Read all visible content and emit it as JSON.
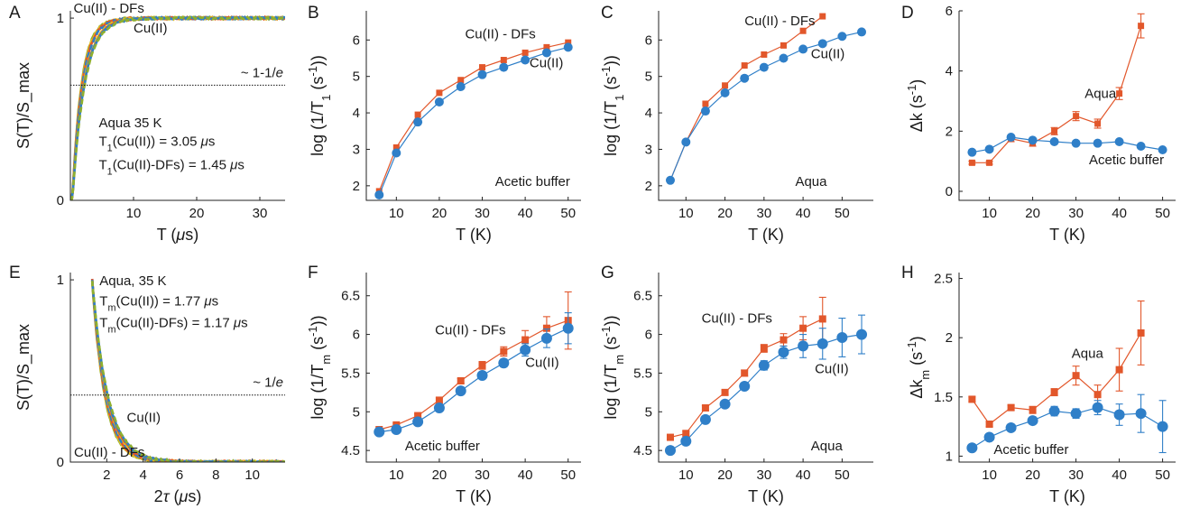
{
  "colors": {
    "orange": "#E2572B",
    "blue": "#2F7FC8",
    "green": "#8FB02E",
    "yellow": "#E8C21E",
    "dash": "#333333"
  },
  "chart_data": [
    {
      "panel": "A",
      "type": "line",
      "xlabel": "T (μs)",
      "ylabel": "S(T)/S_max",
      "xlim": [
        0,
        34
      ],
      "ylim": [
        0,
        1.04
      ],
      "xticks": [
        10,
        20,
        30
      ],
      "yticks": [
        0,
        1
      ],
      "series": [
        {
          "name": "Cu(II)",
          "tau": 3.05,
          "color": "orange"
        },
        {
          "name": "Cu(II) - DFs",
          "tau": 1.45,
          "color": "blue"
        }
      ],
      "hline": {
        "y": 0.632,
        "label": "~ 1-1/e"
      },
      "annotations": [
        {
          "text": "Cu(II) - DFs",
          "x": 0.5,
          "y": 1.03
        },
        {
          "text": "Cu(II)",
          "x": 10,
          "y": 0.92
        },
        {
          "text": "Aqua 35 K",
          "x": 4.5,
          "y": 0.4
        },
        {
          "text": "T1(Cu(II)) = 3.05 μs",
          "x": 4.5,
          "y": 0.3
        },
        {
          "text": "T1(Cu(II)-DFs) = 1.45 μs",
          "x": 4.5,
          "y": 0.17
        }
      ]
    },
    {
      "panel": "B",
      "type": "line",
      "xlabel": "T (K)",
      "ylabel": "log  (1/T1 (s-1))",
      "xlim": [
        3,
        53
      ],
      "ylim": [
        1.6,
        6.8
      ],
      "xticks": [
        10,
        20,
        30,
        40,
        50
      ],
      "yticks": [
        2,
        3,
        4,
        5,
        6
      ],
      "series": [
        {
          "name": "Cu(II) - DFs",
          "marker": "square",
          "color": "orange",
          "x": [
            6,
            10,
            15,
            20,
            25,
            30,
            35,
            40,
            45,
            50
          ],
          "y": [
            1.85,
            3.05,
            3.95,
            4.55,
            4.9,
            5.25,
            5.45,
            5.65,
            5.8,
            5.93
          ]
        },
        {
          "name": "Cu(II)",
          "marker": "circle",
          "color": "blue",
          "x": [
            6,
            10,
            15,
            20,
            25,
            30,
            35,
            40,
            45,
            50
          ],
          "y": [
            1.75,
            2.9,
            3.75,
            4.3,
            4.72,
            5.05,
            5.25,
            5.45,
            5.65,
            5.8
          ]
        }
      ],
      "annotations": [
        {
          "text": "Cu(II) - DFs",
          "x": 26,
          "y": 6.05
        },
        {
          "text": "Cu(II)",
          "x": 41,
          "y": 5.25
        },
        {
          "text": "Acetic buffer",
          "x": 33,
          "y": 2.0
        }
      ]
    },
    {
      "panel": "C",
      "type": "line",
      "xlabel": "T (K)",
      "ylabel": "log  (1/T1 (s-1))",
      "xlim": [
        3,
        58
      ],
      "ylim": [
        1.6,
        6.8
      ],
      "xticks": [
        10,
        20,
        30,
        40,
        50
      ],
      "yticks": [
        2,
        3,
        4,
        5,
        6
      ],
      "series": [
        {
          "name": "Cu(II) - DFs",
          "marker": "square",
          "color": "orange",
          "x": [
            6,
            10,
            15,
            20,
            25,
            30,
            35,
            40,
            45
          ],
          "y": [
            2.15,
            3.2,
            4.25,
            4.75,
            5.3,
            5.6,
            5.85,
            6.25,
            6.65
          ]
        },
        {
          "name": "Cu(II)",
          "marker": "circle",
          "color": "blue",
          "x": [
            6,
            10,
            15,
            20,
            25,
            30,
            35,
            40,
            45,
            50,
            55
          ],
          "y": [
            2.15,
            3.2,
            4.05,
            4.55,
            4.95,
            5.25,
            5.5,
            5.75,
            5.9,
            6.1,
            6.22
          ]
        }
      ],
      "annotations": [
        {
          "text": "Cu(II) - DFs",
          "x": 25,
          "y": 6.4
        },
        {
          "text": "Cu(II)",
          "x": 42,
          "y": 5.5
        },
        {
          "text": "Aqua",
          "x": 38,
          "y": 2.0
        }
      ]
    },
    {
      "panel": "D",
      "type": "line",
      "xlabel": "T (K)",
      "ylabel": "Δk (s-1)",
      "xlim": [
        3,
        53
      ],
      "ylim": [
        -0.3,
        6
      ],
      "xticks": [
        10,
        20,
        30,
        40,
        50
      ],
      "yticks": [
        0,
        2,
        4,
        6
      ],
      "series": [
        {
          "name": "Aqua",
          "marker": "square",
          "color": "orange",
          "x": [
            6,
            10,
            15,
            20,
            25,
            30,
            35,
            40,
            45
          ],
          "y": [
            0.95,
            0.95,
            1.75,
            1.6,
            2.0,
            2.5,
            2.25,
            3.25,
            5.5
          ],
          "err": [
            0.05,
            0.05,
            0.1,
            0.1,
            0.12,
            0.15,
            0.15,
            0.2,
            0.4
          ]
        },
        {
          "name": "Acetic buffer",
          "marker": "circle",
          "color": "blue",
          "x": [
            6,
            10,
            15,
            20,
            25,
            30,
            35,
            40,
            45,
            50
          ],
          "y": [
            1.3,
            1.4,
            1.8,
            1.7,
            1.65,
            1.6,
            1.6,
            1.65,
            1.5,
            1.38
          ]
        }
      ],
      "annotations": [
        {
          "text": "Aqua",
          "x": 32,
          "y": 3.1
        },
        {
          "text": "Acetic buffer",
          "x": 33,
          "y": 0.9
        }
      ]
    },
    {
      "panel": "E",
      "type": "line",
      "xlabel": "2τ (μs)",
      "ylabel": "S(T)/S_max",
      "xlim": [
        0,
        11.8
      ],
      "ylim": [
        0,
        1.04
      ],
      "xticks": [
        2,
        4,
        6,
        8,
        10
      ],
      "yticks": [
        0,
        1
      ],
      "series": [
        {
          "name": "Cu(II)",
          "tm": 1.77,
          "color": "orange"
        },
        {
          "name": "Cu(II) - DFs",
          "tm": 1.17,
          "color": "blue"
        }
      ],
      "hline": {
        "y": 0.368,
        "label": "~ 1/e"
      },
      "annotations": [
        {
          "text": "Aqua, 35 K",
          "x": 1.6,
          "y": 0.97
        },
        {
          "text": "Tm(Cu(II)) = 1.77 μs",
          "x": 1.6,
          "y": 0.86
        },
        {
          "text": "Tm(Cu(II)-DFs) = 1.17 μs",
          "x": 1.6,
          "y": 0.74
        },
        {
          "text": "Cu(II)",
          "x": 3.1,
          "y": 0.22
        },
        {
          "text": "Cu(II) - DFs",
          "x": 0.2,
          "y": 0.03
        }
      ]
    },
    {
      "panel": "F",
      "type": "line",
      "xlabel": "T (K)",
      "ylabel": "log  (1/Tm (s-1))",
      "xlim": [
        3,
        53
      ],
      "ylim": [
        4.35,
        6.8
      ],
      "xticks": [
        10,
        20,
        30,
        40,
        50
      ],
      "yticks": [
        4.5,
        5,
        5.5,
        6,
        6.5
      ],
      "series": [
        {
          "name": "Cu(II) - DFs",
          "marker": "square",
          "color": "orange",
          "x": [
            6,
            10,
            15,
            20,
            25,
            30,
            35,
            40,
            45,
            50
          ],
          "y": [
            4.77,
            4.83,
            4.95,
            5.15,
            5.4,
            5.6,
            5.78,
            5.93,
            6.08,
            6.18
          ],
          "err": [
            0.02,
            0.02,
            0.02,
            0.03,
            0.03,
            0.05,
            0.06,
            0.12,
            0.15,
            0.37
          ]
        },
        {
          "name": "Cu(II)",
          "marker": "circle",
          "color": "blue",
          "x": [
            6,
            10,
            15,
            20,
            25,
            30,
            35,
            40,
            45,
            50
          ],
          "y": [
            4.74,
            4.77,
            4.87,
            5.05,
            5.27,
            5.47,
            5.63,
            5.8,
            5.95,
            6.08
          ],
          "err": [
            0.02,
            0.02,
            0.02,
            0.03,
            0.03,
            0.04,
            0.05,
            0.08,
            0.12,
            0.2
          ]
        }
      ],
      "annotations": [
        {
          "text": "Cu(II) - DFs",
          "x": 19,
          "y": 6.0
        },
        {
          "text": "Cu(II)",
          "x": 40,
          "y": 5.58
        },
        {
          "text": "Acetic buffer",
          "x": 12,
          "y": 4.5
        }
      ]
    },
    {
      "panel": "G",
      "type": "line",
      "xlabel": "T (K)",
      "ylabel": "log  (1/Tm (s-1))",
      "xlim": [
        3,
        58
      ],
      "ylim": [
        4.35,
        6.8
      ],
      "xticks": [
        10,
        20,
        30,
        40,
        50
      ],
      "yticks": [
        4.5,
        5,
        5.5,
        6,
        6.5
      ],
      "series": [
        {
          "name": "Cu(II) - DFs",
          "marker": "square",
          "color": "orange",
          "x": [
            6,
            10,
            15,
            20,
            25,
            30,
            35,
            40,
            45
          ],
          "y": [
            4.67,
            4.72,
            5.05,
            5.25,
            5.5,
            5.82,
            5.93,
            6.08,
            6.2
          ],
          "err": [
            0.02,
            0.03,
            0.03,
            0.03,
            0.04,
            0.05,
            0.08,
            0.15,
            0.28
          ]
        },
        {
          "name": "Cu(II)",
          "marker": "circle",
          "color": "blue",
          "x": [
            6,
            10,
            15,
            20,
            25,
            30,
            35,
            40,
            45,
            50,
            55
          ],
          "y": [
            4.5,
            4.62,
            4.9,
            5.1,
            5.33,
            5.6,
            5.77,
            5.85,
            5.88,
            5.96,
            6.0
          ],
          "err": [
            0.02,
            0.02,
            0.03,
            0.03,
            0.04,
            0.06,
            0.08,
            0.15,
            0.2,
            0.25,
            0.25
          ]
        }
      ],
      "annotations": [
        {
          "text": "Cu(II) - DFs",
          "x": 14,
          "y": 6.15
        },
        {
          "text": "Cu(II)",
          "x": 43,
          "y": 5.5
        },
        {
          "text": "Aqua",
          "x": 42,
          "y": 4.5
        }
      ]
    },
    {
      "panel": "H",
      "type": "line",
      "xlabel": "T (K)",
      "ylabel": "Δkm (s-1)",
      "xlim": [
        3,
        53
      ],
      "ylim": [
        0.95,
        2.55
      ],
      "xticks": [
        10,
        20,
        30,
        40,
        50
      ],
      "yticks": [
        1,
        1.5,
        2,
        2.5
      ],
      "series": [
        {
          "name": "Aqua",
          "marker": "square",
          "color": "orange",
          "x": [
            6,
            10,
            15,
            20,
            25,
            30,
            35,
            40,
            45
          ],
          "y": [
            1.48,
            1.27,
            1.41,
            1.39,
            1.54,
            1.68,
            1.52,
            1.73,
            2.04
          ],
          "err": [
            0.02,
            0.02,
            0.02,
            0.03,
            0.03,
            0.08,
            0.08,
            0.18,
            0.27
          ]
        },
        {
          "name": "Acetic buffer",
          "marker": "circle",
          "color": "blue",
          "x": [
            6,
            10,
            15,
            20,
            25,
            30,
            35,
            40,
            45,
            50
          ],
          "y": [
            1.07,
            1.16,
            1.24,
            1.3,
            1.38,
            1.36,
            1.41,
            1.35,
            1.36,
            1.25
          ],
          "err": [
            0.02,
            0.02,
            0.03,
            0.03,
            0.04,
            0.04,
            0.06,
            0.09,
            0.16,
            0.22
          ]
        }
      ],
      "annotations": [
        {
          "text": "Aqua",
          "x": 29,
          "y": 1.83
        },
        {
          "text": "Acetic buffer",
          "x": 11,
          "y": 1.02
        }
      ]
    }
  ]
}
